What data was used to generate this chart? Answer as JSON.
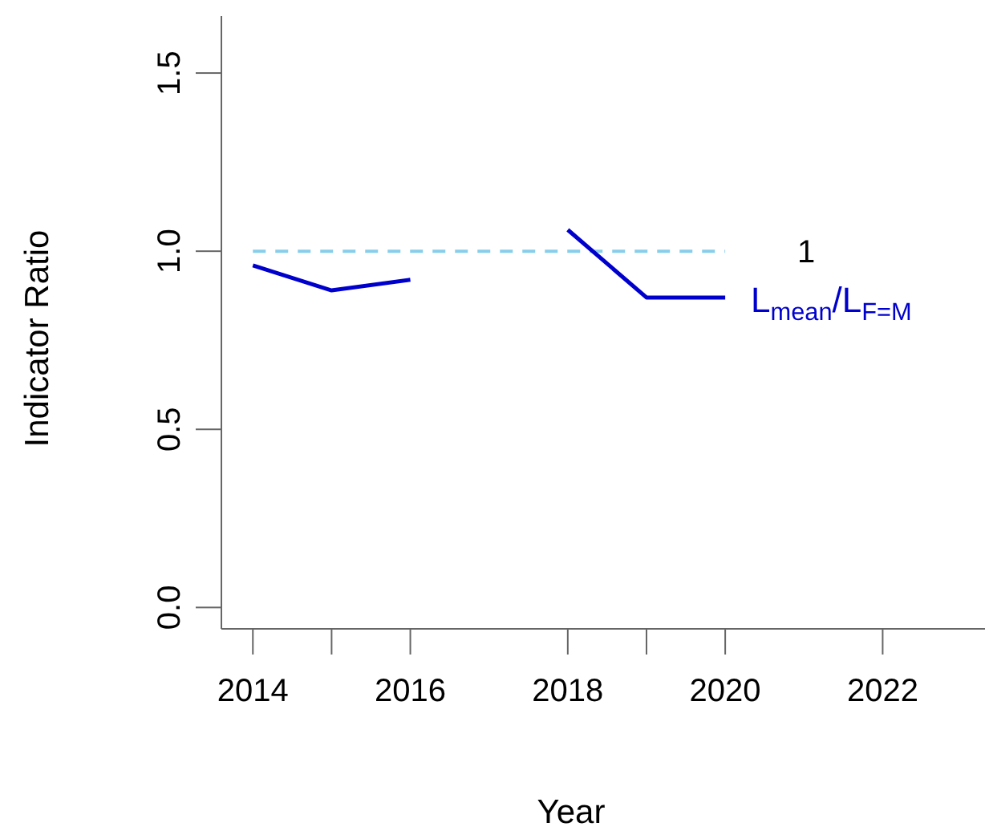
{
  "chart_data": {
    "type": "line",
    "xlabel": "Year",
    "ylabel": "Indicator Ratio",
    "x": [
      2014,
      2015,
      2016,
      2017,
      2018,
      2019,
      2020
    ],
    "series": [
      {
        "name": "L$_{mean}$/L$_{F=M}$",
        "color": "#0000cd",
        "values": [
          0.96,
          0.89,
          0.92,
          null,
          1.06,
          0.87,
          0.87
        ]
      }
    ],
    "xlim": [
      2013.6,
      2023.3
    ],
    "xticks": [
      2014,
      {
        "value": 2015,
        "label": null
      },
      2016,
      2018,
      {
        "value": 2019,
        "label": null
      },
      2020,
      2022
    ],
    "ylim": [
      -0.06,
      1.66
    ],
    "yticks": [
      {
        "value": 0,
        "label": "0.0"
      },
      {
        "value": 0.5,
        "label": "0.5"
      },
      {
        "value": 1,
        "label": "1.0"
      },
      {
        "value": 1.5,
        "label": "1.5"
      }
    ],
    "ref_lines": [
      {
        "axis": "y",
        "value": 1,
        "label": "1",
        "color": "#87ceeb",
        "line_style": "dashed"
      }
    ],
    "grid": false,
    "marker": "none",
    "line_style": "solid"
  }
}
